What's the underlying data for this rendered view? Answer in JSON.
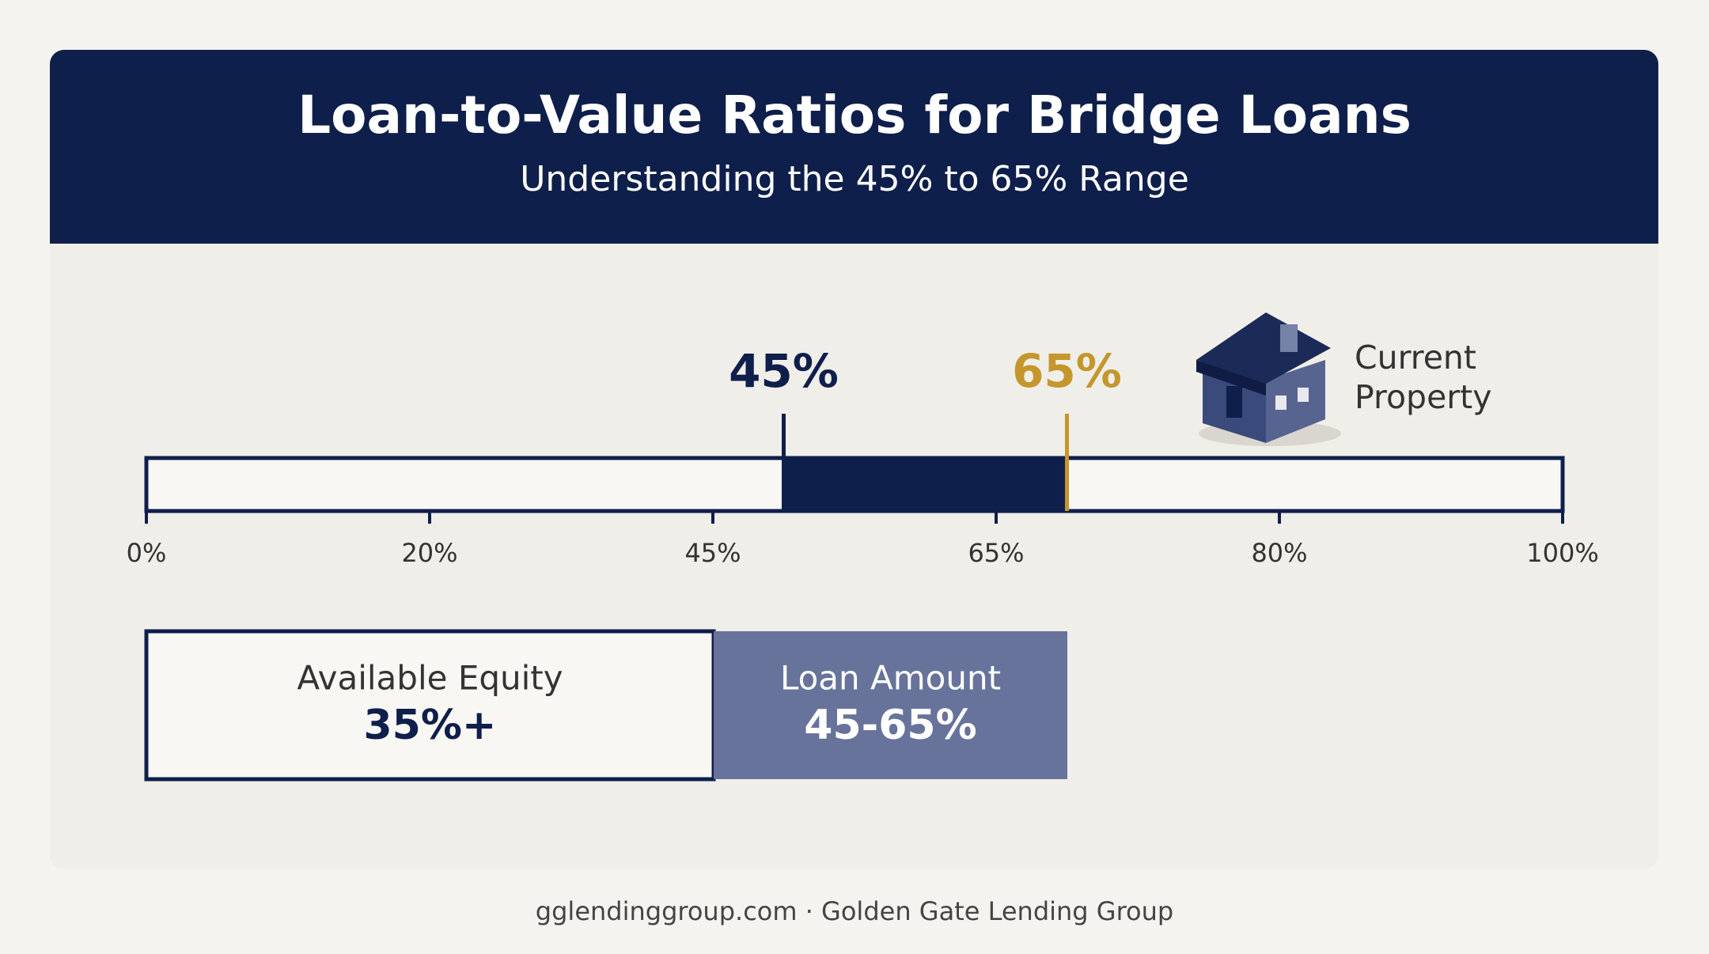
{
  "header": {
    "title": "Loan-to-Value Ratios for Bridge Loans",
    "subtitle": "Understanding the 45% to 65% Range"
  },
  "scale": {
    "range": [
      0,
      100
    ],
    "ticks": [
      "0%",
      "20%",
      "45%",
      "65%",
      "80%",
      "100%"
    ],
    "markers": [
      {
        "value": 45,
        "label": "45%",
        "color": "#0f1f4b"
      },
      {
        "value": 65,
        "label": "65%",
        "color": "#c4962c"
      }
    ]
  },
  "property": {
    "label": "Current Property"
  },
  "boxes": [
    {
      "label": "Available Equity",
      "value": "35%+"
    },
    {
      "label": "Loan Amount",
      "value": "45-65%"
    }
  ],
  "footer": "gglendinggroup.com · Golden Gate Lending Group"
}
